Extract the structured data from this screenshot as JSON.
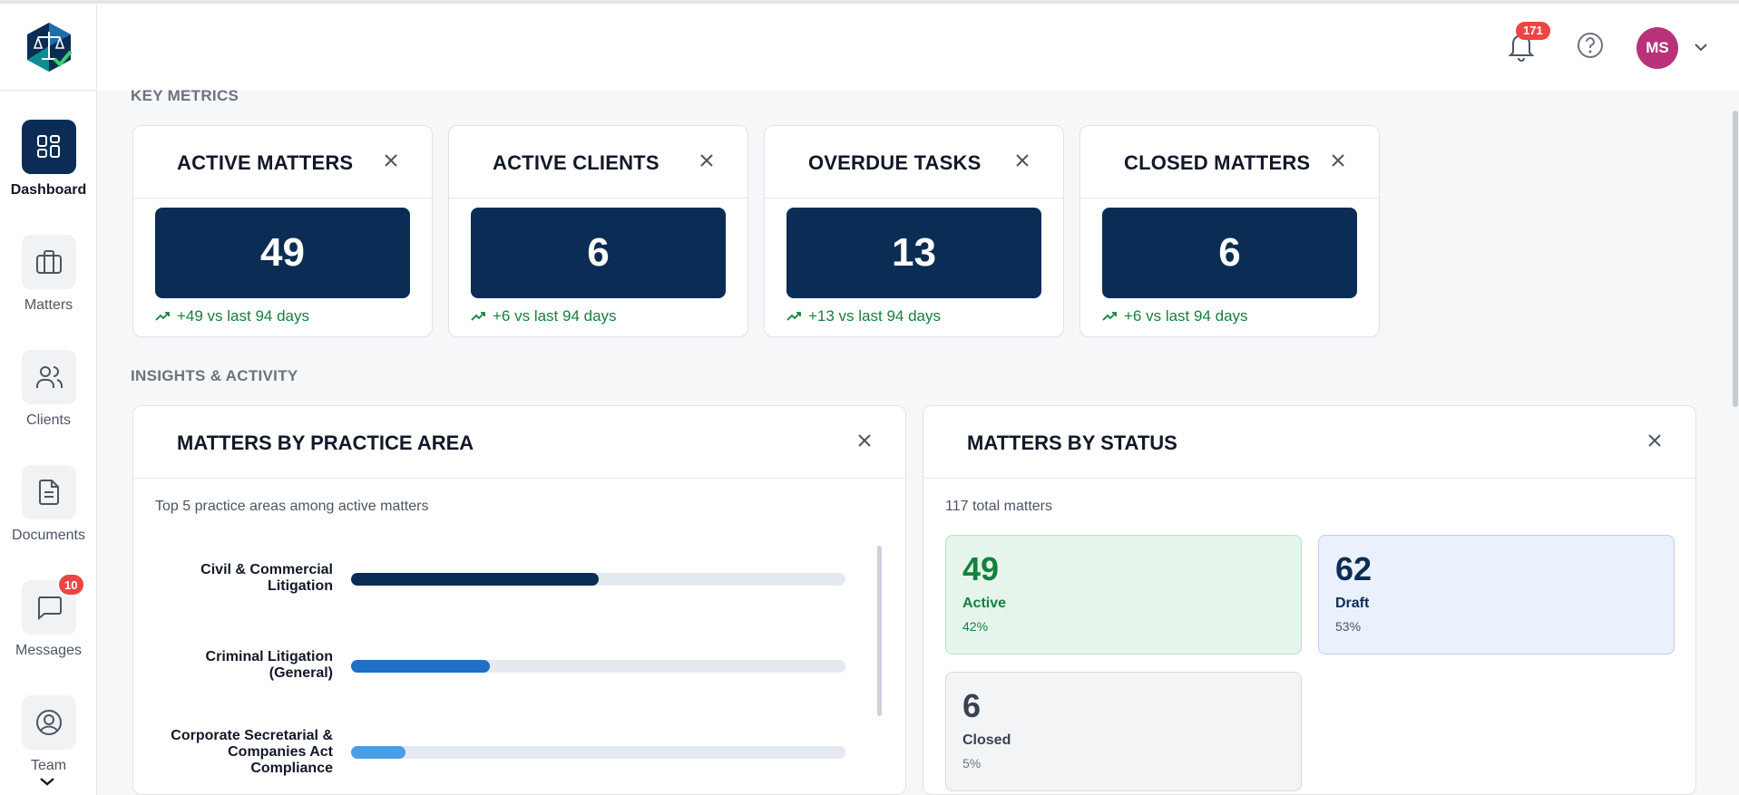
{
  "header": {
    "notifications_count": "171",
    "avatar_initials": "MS"
  },
  "sidebar": {
    "items": [
      {
        "label": "Dashboard",
        "icon": "dashboard-icon",
        "active": true
      },
      {
        "label": "Matters",
        "icon": "briefcase-icon",
        "active": false
      },
      {
        "label": "Clients",
        "icon": "users-icon",
        "active": false
      },
      {
        "label": "Documents",
        "icon": "document-icon",
        "active": false
      },
      {
        "label": "Messages",
        "icon": "message-icon",
        "active": false,
        "badge": "10"
      },
      {
        "label": "Team",
        "icon": "user-circle-icon",
        "active": false
      }
    ]
  },
  "sections": {
    "key_metrics": "KEY METRICS",
    "insights": "INSIGHTS & ACTIVITY"
  },
  "metrics": [
    {
      "title": "ACTIVE MATTERS",
      "value": "49",
      "trend": "+49 vs last 94 days"
    },
    {
      "title": "ACTIVE CLIENTS",
      "value": "6",
      "trend": "+6 vs last 94 days"
    },
    {
      "title": "OVERDUE TASKS",
      "value": "13",
      "trend": "+13 vs last 94 days"
    },
    {
      "title": "CLOSED MATTERS",
      "value": "6",
      "trend": "+6 vs last 94 days"
    }
  ],
  "practice_area": {
    "title": "MATTERS BY PRACTICE AREA",
    "subtitle": "Top 5 practice areas among active matters",
    "chart_data": {
      "type": "bar",
      "categories": [
        "Civil & Commercial Litigation",
        "Criminal Litigation (General)",
        "Corporate Secretarial & Companies Act Compliance"
      ],
      "values": [
        0.5,
        0.28,
        0.11
      ],
      "colors": [
        "#0b2d55",
        "#1f6fc5",
        "#4a9ee6"
      ]
    },
    "labels": {
      "row0": {
        "line1": "Civil & Commercial",
        "line2": "Litigation"
      },
      "row1": {
        "line1": "Criminal Litigation",
        "line2": "(General)"
      },
      "row2": {
        "line1": "Corporate Secretarial &",
        "line2": "Companies Act",
        "line3": "Compliance"
      }
    }
  },
  "status": {
    "title": "MATTERS BY STATUS",
    "subtitle": "117 total matters",
    "cards": [
      {
        "value": "49",
        "label": "Active",
        "pct": "42%"
      },
      {
        "value": "62",
        "label": "Draft",
        "pct": "53%"
      },
      {
        "value": "6",
        "label": "Closed",
        "pct": "5%"
      }
    ]
  },
  "colors": {
    "navy": "#0b2d55",
    "trend_green": "#15803d",
    "badge_red": "#ef4444",
    "avatar": "#b8327a"
  }
}
